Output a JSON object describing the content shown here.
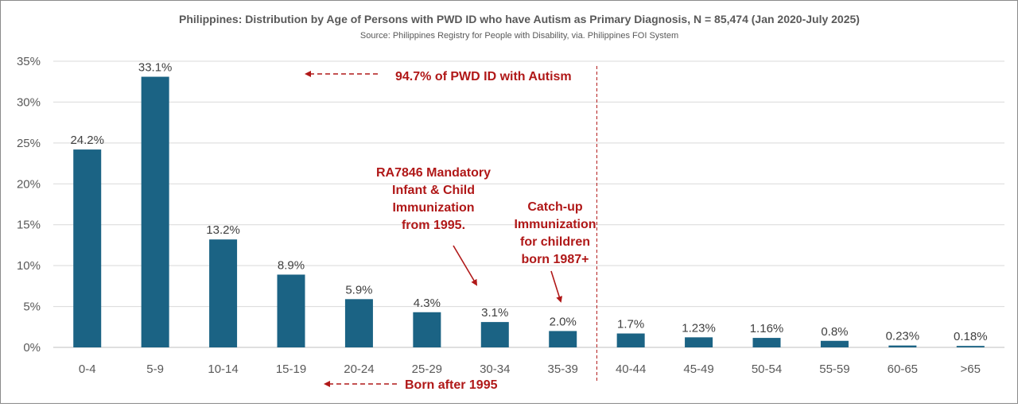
{
  "chart_data": {
    "type": "bar",
    "title": "Philippines: Distribution by Age of Persons with PWD ID who have Autism as Primary Diagnosis, N = 85,474 (Jan 2020-July 2025)",
    "subtitle": "Source: Philippines Registry for People with Disability, via. Philippines FOI System",
    "xlabel": "",
    "ylabel": "",
    "ylim": [
      0,
      35
    ],
    "yticks": [
      0,
      5,
      10,
      15,
      20,
      25,
      30,
      35
    ],
    "ytick_labels": [
      "0%",
      "5%",
      "10%",
      "15%",
      "20%",
      "25%",
      "30%",
      "35%"
    ],
    "grid": true,
    "categories": [
      "0-4",
      "5-9",
      "10-14",
      "15-19",
      "20-24",
      "25-29",
      "30-34",
      "35-39",
      "40-44",
      "45-49",
      "50-54",
      "55-59",
      "60-65",
      ">65"
    ],
    "values": [
      24.2,
      33.1,
      13.2,
      8.9,
      5.9,
      4.3,
      3.1,
      2.0,
      1.7,
      1.23,
      1.16,
      0.8,
      0.23,
      0.18
    ],
    "data_labels": [
      "24.2%",
      "33.1%",
      "13.2%",
      "8.9%",
      "5.9%",
      "4.3%",
      "3.1%",
      "2.0%",
      "1.7%",
      "1.23%",
      "1.16%",
      "0.8%",
      "0.23%",
      "0.18%"
    ],
    "bar_color": "#1b6384",
    "divider_after_category": "35-39",
    "annotations": {
      "top": "94.7% of PWD ID with Autism",
      "bottom": "Born after 1995",
      "ra7846": [
        "RA7846 Mandatory",
        "Infant & Child",
        "Immunization",
        "from 1995."
      ],
      "catchup": [
        "Catch-up",
        "Immunization",
        "for children",
        "born 1987+"
      ]
    },
    "annotation_color": "#b01818"
  }
}
